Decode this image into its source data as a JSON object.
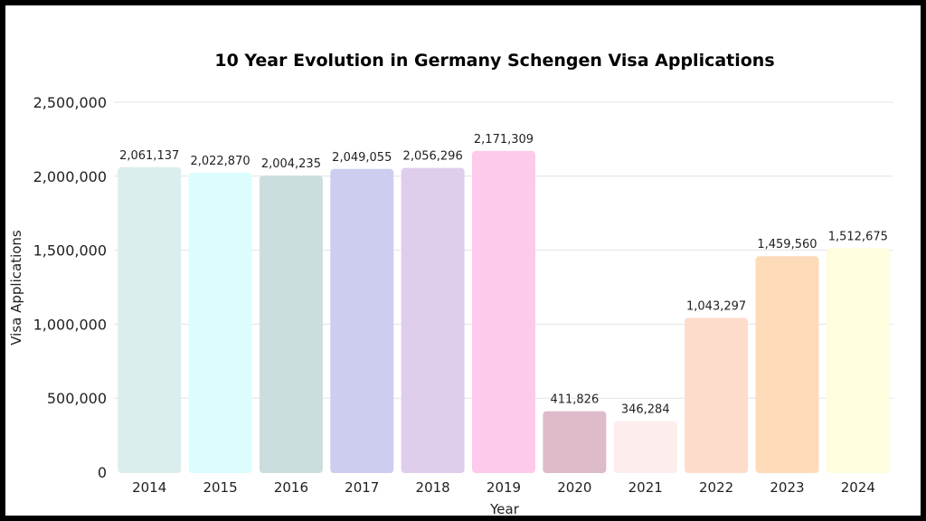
{
  "chart_data": {
    "type": "bar",
    "title": "10 Year Evolution in Germany Schengen Visa Applications",
    "xlabel": "Year",
    "ylabel": "Visa Applications",
    "ylim": [
      0,
      2500000
    ],
    "yticks": [
      0,
      500000,
      1000000,
      1500000,
      2000000,
      2500000
    ],
    "ytick_labels": [
      "0",
      "500,000",
      "1,000,000",
      "1,500,000",
      "2,000,000",
      "2,500,000"
    ],
    "grid": true,
    "categories": [
      "2014",
      "2015",
      "2016",
      "2017",
      "2018",
      "2019",
      "2020",
      "2021",
      "2022",
      "2023",
      "2024"
    ],
    "values": [
      2061137,
      2022870,
      2004235,
      2049055,
      2056296,
      2171309,
      411826,
      346284,
      1043297,
      1459560,
      1512675
    ],
    "data_labels": [
      "2,061,137",
      "2,022,870",
      "2,004,235",
      "2,049,055",
      "2,056,296",
      "2,171,309",
      "411,826",
      "346,284",
      "1,043,297",
      "1,459,560",
      "1,512,675"
    ],
    "colors": [
      "#dbeeed",
      "#dcfdfd",
      "#cadedd",
      "#cccdef",
      "#dfcdee",
      "#fdcaec",
      "#ddbbcb",
      "#fdeded",
      "#fddccc",
      "#fddbb9",
      "#fefddd"
    ]
  }
}
